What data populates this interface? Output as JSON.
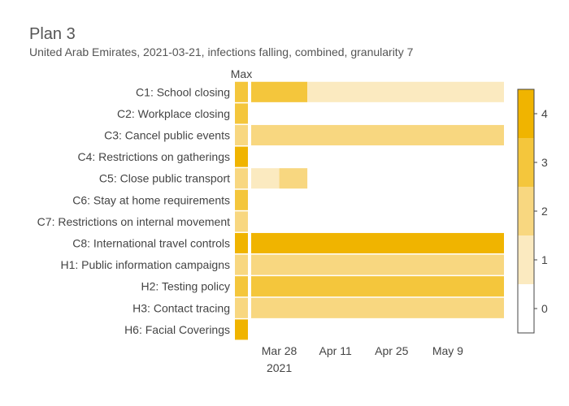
{
  "chart_data": {
    "type": "heatmap",
    "title": "Plan 3",
    "subtitle": "United Arab Emirates, 2021-03-21, infections falling, combined, granularity 7",
    "max_column_label": "Max",
    "categories": [
      "C1: School closing",
      "C2: Workplace closing",
      "C3: Cancel public events",
      "C4: Restrictions on gatherings",
      "C5: Close public transport",
      "C6: Stay at home requirements",
      "C7: Restrictions on internal movement",
      "C8: International travel controls",
      "H1: Public information campaigns",
      "H2: Testing policy",
      "H3: Contact tracing",
      "H6: Facial Coverings"
    ],
    "max_values": [
      3,
      3,
      2,
      4,
      2,
      3,
      2,
      4,
      2,
      3,
      2,
      4
    ],
    "x_ticks": [
      {
        "date": "2021-03-28",
        "label": "Mar 28",
        "sublabel": "2021"
      },
      {
        "date": "2021-04-11",
        "label": "Apr 11",
        "sublabel": ""
      },
      {
        "date": "2021-04-25",
        "label": "Apr 25",
        "sublabel": ""
      },
      {
        "date": "2021-05-09",
        "label": "May 9",
        "sublabel": ""
      }
    ],
    "x_range": [
      "2021-03-21",
      "2021-05-23"
    ],
    "segments": [
      {
        "category": "C1: School closing",
        "start": "2021-03-21",
        "end": "2021-04-04",
        "value": 3
      },
      {
        "category": "C1: School closing",
        "start": "2021-04-04",
        "end": "2021-05-23",
        "value": 1
      },
      {
        "category": "C3: Cancel public events",
        "start": "2021-03-21",
        "end": "2021-05-23",
        "value": 2
      },
      {
        "category": "C5: Close public transport",
        "start": "2021-03-21",
        "end": "2021-03-28",
        "value": 1
      },
      {
        "category": "C5: Close public transport",
        "start": "2021-03-28",
        "end": "2021-04-04",
        "value": 2
      },
      {
        "category": "C8: International travel controls",
        "start": "2021-03-21",
        "end": "2021-05-23",
        "value": 4
      },
      {
        "category": "H1: Public information campaigns",
        "start": "2021-03-21",
        "end": "2021-05-23",
        "value": 2
      },
      {
        "category": "H2: Testing policy",
        "start": "2021-03-21",
        "end": "2021-05-23",
        "value": 3
      },
      {
        "category": "H3: Contact tracing",
        "start": "2021-03-21",
        "end": "2021-05-23",
        "value": 2
      }
    ],
    "colorscale": {
      "levels": [
        0,
        1,
        2,
        3,
        4
      ],
      "colors": [
        "#ffffff",
        "#fbeac0",
        "#f8d780",
        "#f4c63c",
        "#f0b400"
      ],
      "tick_labels": [
        "0",
        "1",
        "2",
        "3",
        "4"
      ]
    }
  }
}
